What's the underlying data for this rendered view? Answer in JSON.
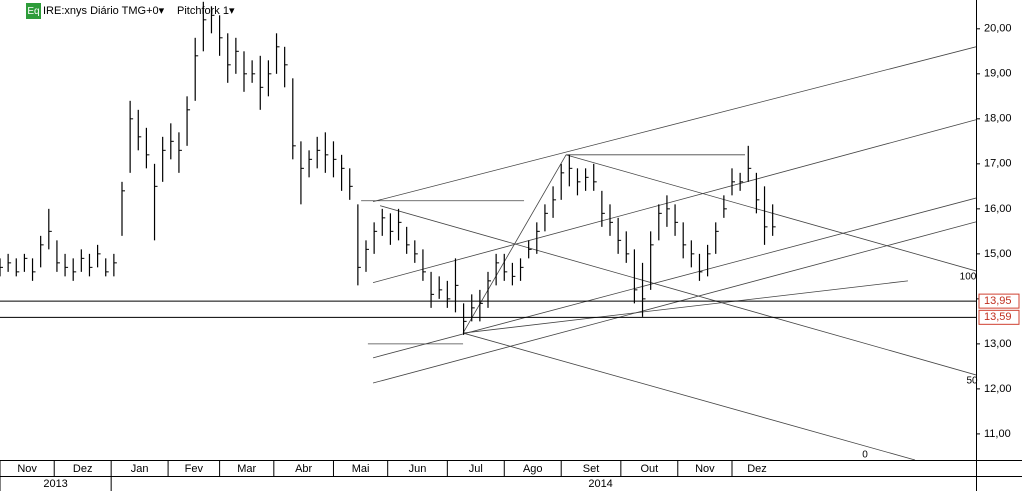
{
  "chart_data": {
    "type": "ohlc",
    "header": {
      "badge": "Eq",
      "symbol": "IRE:xnys Diário TMG+0▾",
      "study": "Pitchfork 1▾"
    },
    "x": [
      0,
      3,
      6,
      9,
      12,
      15,
      18,
      21,
      24,
      27,
      30,
      33,
      36,
      39,
      42,
      45,
      48,
      51,
      54,
      57,
      60,
      63,
      66,
      69,
      72,
      75,
      78,
      81,
      84,
      87,
      90,
      93,
      96,
      99,
      102,
      105,
      108,
      111,
      114,
      117,
      120,
      123,
      126,
      129,
      132,
      135,
      138,
      141,
      144,
      147,
      150,
      153,
      156,
      159,
      162,
      165,
      168,
      171,
      174,
      177,
      180,
      183,
      186,
      189,
      192,
      195,
      198,
      201,
      204,
      207,
      210,
      213,
      216,
      219,
      222,
      225,
      228,
      231,
      234,
      237,
      240,
      243,
      246,
      249,
      252,
      255,
      258,
      261,
      264,
      267,
      270,
      273,
      276,
      279,
      282,
      285
    ],
    "high": [
      14.9,
      15.0,
      14.9,
      15.0,
      14.9,
      15.4,
      16.0,
      15.3,
      15.0,
      14.9,
      15.1,
      15.0,
      15.2,
      14.9,
      15.0,
      16.6,
      18.4,
      18.2,
      17.8,
      17.0,
      17.6,
      17.9,
      17.7,
      18.5,
      19.8,
      20.6,
      20.5,
      20.3,
      19.9,
      19.8,
      19.5,
      19.3,
      19.4,
      19.3,
      19.9,
      19.6,
      18.9,
      17.5,
      17.3,
      17.6,
      17.7,
      17.5,
      17.2,
      16.9,
      16.1,
      15.3,
      15.7,
      16.0,
      15.9,
      16.0,
      15.6,
      15.3,
      15.1,
      14.6,
      14.5,
      14.4,
      14.9,
      13.9,
      14.1,
      14.2,
      14.6,
      15.0,
      15.0,
      14.8,
      14.9,
      15.3,
      15.7,
      16.1,
      16.5,
      17.0,
      17.2,
      16.9,
      16.9,
      17.0,
      16.4,
      16.1,
      15.8,
      15.5,
      15.1,
      14.8,
      15.5,
      16.1,
      16.3,
      16.1,
      15.7,
      15.3,
      15.0,
      15.2,
      15.7,
      16.3,
      16.9,
      16.8,
      17.4,
      16.8,
      16.5,
      16.1
    ],
    "low": [
      14.5,
      14.6,
      14.5,
      14.6,
      14.4,
      14.7,
      15.1,
      14.6,
      14.5,
      14.4,
      14.6,
      14.5,
      14.7,
      14.5,
      14.5,
      15.4,
      16.8,
      17.3,
      16.9,
      15.3,
      16.6,
      17.1,
      16.8,
      17.4,
      18.4,
      19.5,
      19.9,
      19.4,
      18.8,
      19.0,
      18.6,
      18.8,
      18.2,
      18.5,
      19.0,
      18.7,
      17.1,
      16.1,
      16.7,
      16.9,
      16.8,
      16.7,
      16.4,
      16.2,
      14.3,
      14.6,
      15.0,
      15.4,
      15.2,
      15.3,
      15.0,
      14.8,
      14.4,
      13.8,
      14.0,
      13.8,
      13.7,
      13.2,
      13.5,
      13.5,
      13.8,
      14.3,
      14.4,
      14.3,
      14.4,
      14.9,
      15.0,
      15.5,
      15.8,
      16.2,
      16.5,
      16.3,
      16.4,
      16.4,
      15.6,
      15.4,
      15.0,
      14.8,
      13.9,
      13.6,
      14.2,
      15.3,
      15.6,
      15.4,
      14.9,
      14.7,
      14.4,
      14.5,
      15.0,
      15.8,
      16.3,
      16.4,
      16.6,
      15.9,
      15.2,
      15.4
    ],
    "close": [
      14.7,
      14.8,
      14.6,
      14.9,
      14.6,
      15.2,
      15.5,
      14.8,
      14.7,
      14.6,
      14.9,
      14.7,
      15.0,
      14.6,
      14.8,
      16.4,
      18.0,
      17.6,
      17.2,
      16.5,
      17.3,
      17.5,
      17.3,
      18.2,
      19.4,
      20.2,
      20.3,
      19.8,
      19.2,
      19.5,
      19.0,
      19.0,
      18.7,
      19.0,
      19.6,
      19.2,
      17.4,
      16.9,
      17.1,
      17.3,
      17.2,
      17.1,
      16.9,
      16.5,
      14.7,
      15.1,
      15.5,
      15.8,
      15.5,
      15.7,
      15.2,
      15.0,
      14.6,
      14.1,
      14.2,
      14.0,
      14.3,
      13.5,
      13.8,
      13.9,
      14.4,
      14.8,
      14.6,
      14.5,
      14.7,
      15.1,
      15.5,
      15.9,
      16.2,
      16.8,
      16.9,
      16.6,
      16.7,
      16.6,
      15.9,
      15.7,
      15.3,
      15.0,
      14.2,
      14.0,
      15.2,
      15.9,
      16.0,
      15.7,
      15.2,
      15.0,
      14.6,
      15.0,
      15.5,
      16.0,
      16.6,
      16.6,
      16.9,
      16.2,
      15.6,
      15.6
    ],
    "xlim": [
      0,
      360
    ],
    "ylim": [
      10.42,
      20.64
    ],
    "yticks": [
      {
        "value": 11,
        "label": "11,00"
      },
      {
        "value": 12,
        "label": "12,00"
      },
      {
        "value": 13,
        "label": "13,00"
      },
      {
        "value": 14,
        "label": "14,00"
      },
      {
        "value": 15,
        "label": "15,00"
      },
      {
        "value": 16,
        "label": "16,00"
      },
      {
        "value": 17,
        "label": "17,00"
      },
      {
        "value": 18,
        "label": "18,00"
      },
      {
        "value": 19,
        "label": "19,00"
      },
      {
        "value": 20,
        "label": "20,00"
      }
    ],
    "xticks": [
      {
        "value": 0,
        "label": "Nov"
      },
      {
        "value": 20,
        "label": "Dez"
      },
      {
        "value": 41,
        "label": "Jan"
      },
      {
        "value": 62,
        "label": "Fev"
      },
      {
        "value": 81,
        "label": "Mar"
      },
      {
        "value": 101,
        "label": "Abr"
      },
      {
        "value": 123,
        "label": "Mai"
      },
      {
        "value": 143,
        "label": "Jun"
      },
      {
        "value": 165,
        "label": "Jul"
      },
      {
        "value": 186,
        "label": "Ago"
      },
      {
        "value": 207,
        "label": "Set"
      },
      {
        "value": 229,
        "label": "Out"
      },
      {
        "value": 250,
        "label": "Nov"
      },
      {
        "value": 270,
        "label": "Dez"
      }
    ],
    "years": [
      {
        "value": 0,
        "label": "2013"
      },
      {
        "value": 41,
        "label": "2014"
      }
    ],
    "levels": [
      {
        "value": 13.95,
        "label": "13,95"
      },
      {
        "value": 13.59,
        "label": "13,59"
      }
    ],
    "lines": [
      {
        "x": [
          137.6,
          360
        ],
        "y": [
          16.16,
          19.6
        ]
      },
      {
        "x": [
          137.6,
          360
        ],
        "y": [
          14.36,
          17.98
        ]
      },
      {
        "x": [
          137.6,
          360
        ],
        "y": [
          12.69,
          16.24
        ]
      },
      {
        "x": [
          137.6,
          360
        ],
        "y": [
          12.13,
          15.71
        ]
      },
      {
        "x": [
          140.2,
          360
        ],
        "y": [
          16.07,
          12.31
        ]
      },
      {
        "x": [
          208.8,
          360
        ],
        "y": [
          17.2,
          14.62
        ]
      },
      {
        "x": [
          170.8,
          337.5
        ],
        "y": [
          13.24,
          10.42
        ]
      },
      {
        "x": [
          170.8,
          208.8
        ],
        "y": [
          13.24,
          17.2
        ]
      },
      {
        "x": [
          133.2,
          193.3
        ],
        "y": [
          16.18,
          16.18
        ]
      },
      {
        "x": [
          208.8,
          274.8
        ],
        "y": [
          17.2,
          17.2
        ]
      },
      {
        "x": [
          170.8,
          334.9
        ],
        "y": [
          13.24,
          14.4
        ]
      },
      {
        "x": [
          135.7,
          170.8
        ],
        "y": [
          13.0,
          13.0
        ]
      }
    ],
    "annotations": [
      "100",
      "50",
      "0"
    ],
    "color": "#000000"
  }
}
